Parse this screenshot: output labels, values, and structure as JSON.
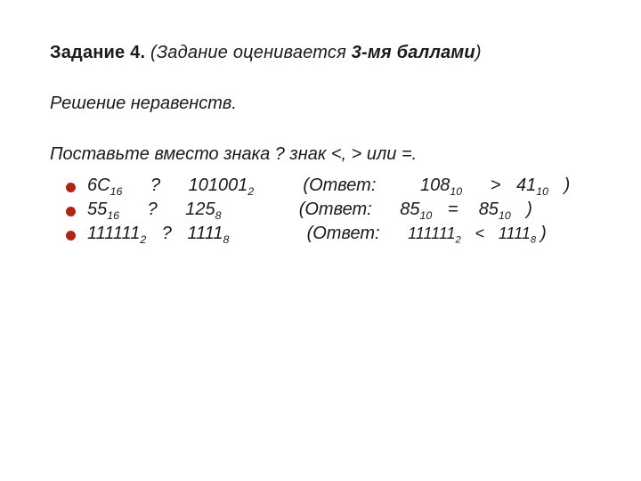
{
  "colors": {
    "bullet": "#b02418",
    "text": "#1a1a1a",
    "background": "#ffffff"
  },
  "typography": {
    "font_family": "Arial",
    "title_fontsize_pt": 15,
    "body_fontsize_pt": 15,
    "sub_scale": 0.62
  },
  "title": {
    "label": "Задание 4.",
    "rest_prefix": " (Задание оценивается ",
    "points": "3-мя баллами",
    "rest_suffix": ")"
  },
  "subtitle": "Решение неравенств.",
  "instruction": {
    "lead": "Поставьте вместо знака ? знак ",
    "ops": "<, >",
    "tail": " или =."
  },
  "items": [
    {
      "left_value": "6С",
      "left_base": "16",
      "op": "?",
      "right_value": "101001",
      "right_base": "2",
      "answer_label": "(Ответ:",
      "a_left_value": "108",
      "a_left_base": "10",
      "a_op": ">",
      "a_right_value": "41",
      "a_right_base": "10",
      "close": ")"
    },
    {
      "left_value": "55",
      "left_base": "16",
      "op": "?",
      "right_value": "125",
      "right_base": "8",
      "answer_label": "(Ответ:",
      "a_left_value": "85",
      "a_left_base": "10",
      "a_op": "=",
      "a_right_value": "85",
      "a_right_base": "10",
      "close": ")"
    },
    {
      "left_value": "111111",
      "left_base": "2",
      "op": "?",
      "right_value": "1111",
      "right_base": "8",
      "answer_label": "(Ответ:",
      "a_left_value": "111111",
      "a_left_base": "2",
      "a_op": "<",
      "a_right_value": "1111",
      "a_right_base": "8",
      "close": ")"
    }
  ]
}
